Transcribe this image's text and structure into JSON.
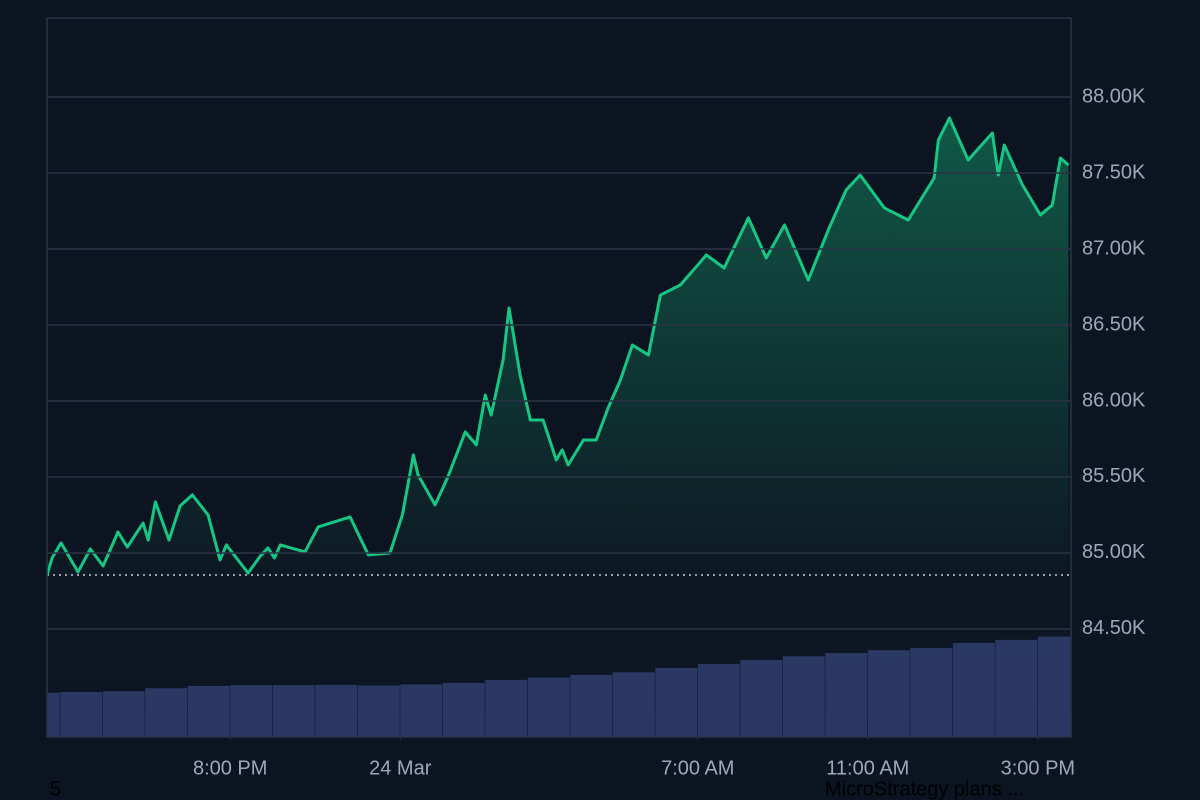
{
  "chart_data": {
    "type": "area",
    "series": [
      {
        "color": "#16c784",
        "x": [
          -8.31,
          -8.19,
          -7.98,
          -7.58,
          -7.29,
          -6.99,
          -6.64,
          -6.42,
          -6.05,
          -5.93,
          -5.76,
          -5.44,
          -5.18,
          -4.89,
          -4.52,
          -4.24,
          -4.09,
          -3.58,
          -3.29,
          -3.11,
          -2.96,
          -2.82,
          -2.24,
          -1.93,
          -1.18,
          -0.75,
          -0.24,
          0.05,
          0.31,
          0.42,
          0.82,
          1.11,
          1.53,
          1.79,
          2.0,
          2.14,
          2.42,
          2.56,
          2.82,
          3.06,
          3.36,
          3.67,
          3.81,
          3.95,
          4.31,
          4.61,
          4.89,
          5.18,
          5.46,
          5.84,
          6.12,
          6.59,
          7.06,
          7.2,
          7.62,
          8.19,
          8.61,
          9.04,
          9.6,
          10.07,
          10.49,
          10.82,
          11.39,
          11.95,
          12.56,
          12.66,
          12.92,
          13.36,
          13.93,
          14.07,
          14.21,
          14.64,
          15.06,
          15.34,
          15.53,
          15.72
        ],
        "values": [
          84855,
          84967,
          85066,
          84875,
          85026,
          84914,
          85138,
          85039,
          85197,
          85085,
          85336,
          85085,
          85309,
          85382,
          85250,
          84954,
          85053,
          84868,
          84980,
          85033,
          84967,
          85053,
          85007,
          85171,
          85237,
          84987,
          85000,
          85250,
          85645,
          85513,
          85316,
          85493,
          85796,
          85711,
          86039,
          85908,
          86270,
          86612,
          86171,
          85875,
          85875,
          85612,
          85678,
          85579,
          85743,
          85743,
          85954,
          86138,
          86368,
          86303,
          86697,
          86763,
          86914,
          86961,
          86875,
          87204,
          86941,
          87158,
          86796,
          87125,
          87388,
          87487,
          87270,
          87191,
          87467,
          87717,
          87862,
          87586,
          87763,
          87487,
          87684,
          87421,
          87224,
          87289,
          87599,
          87553
        ]
      }
    ],
    "volume": {
      "color": "#2a3763",
      "x": [
        -9,
        -8,
        -7,
        -6,
        -5,
        -4,
        -3,
        -2,
        -1,
        0,
        1,
        2,
        3,
        4,
        5,
        6,
        7,
        8,
        9,
        10,
        11,
        12,
        13,
        14,
        15
      ],
      "values": [
        84080,
        84085,
        84090,
        84110,
        84125,
        84130,
        84130,
        84132,
        84128,
        84135,
        84145,
        84165,
        84180,
        84197,
        84215,
        84243,
        84270,
        84296,
        84320,
        84342,
        84360,
        84375,
        84408,
        84428,
        84450
      ]
    },
    "reference_line": 84855,
    "xlim": [
      -8.31,
      15.78
    ],
    "xticks": [
      {
        "value": -4,
        "label": "8:00 PM"
      },
      {
        "value": 0,
        "label": "24 Mar"
      },
      {
        "value": 7,
        "label": "7:00 AM"
      },
      {
        "value": 11,
        "label": "11:00 AM"
      },
      {
        "value": 15,
        "label": "3:00 PM"
      }
    ],
    "ylim": [
      83789,
      88520
    ],
    "yticks": [
      {
        "value": 84500,
        "label": "84.50K"
      },
      {
        "value": 85000,
        "label": "85.00K"
      },
      {
        "value": 85500,
        "label": "85.50K"
      },
      {
        "value": 86000,
        "label": "86.00K"
      },
      {
        "value": 86500,
        "label": "86.50K"
      },
      {
        "value": 87000,
        "label": "87.00K"
      },
      {
        "value": 87500,
        "label": "87.50K"
      },
      {
        "value": 88000,
        "label": "88.00K"
      }
    ],
    "grid": true,
    "annotations": [
      "5",
      "MicroStrategy plans ..."
    ]
  }
}
